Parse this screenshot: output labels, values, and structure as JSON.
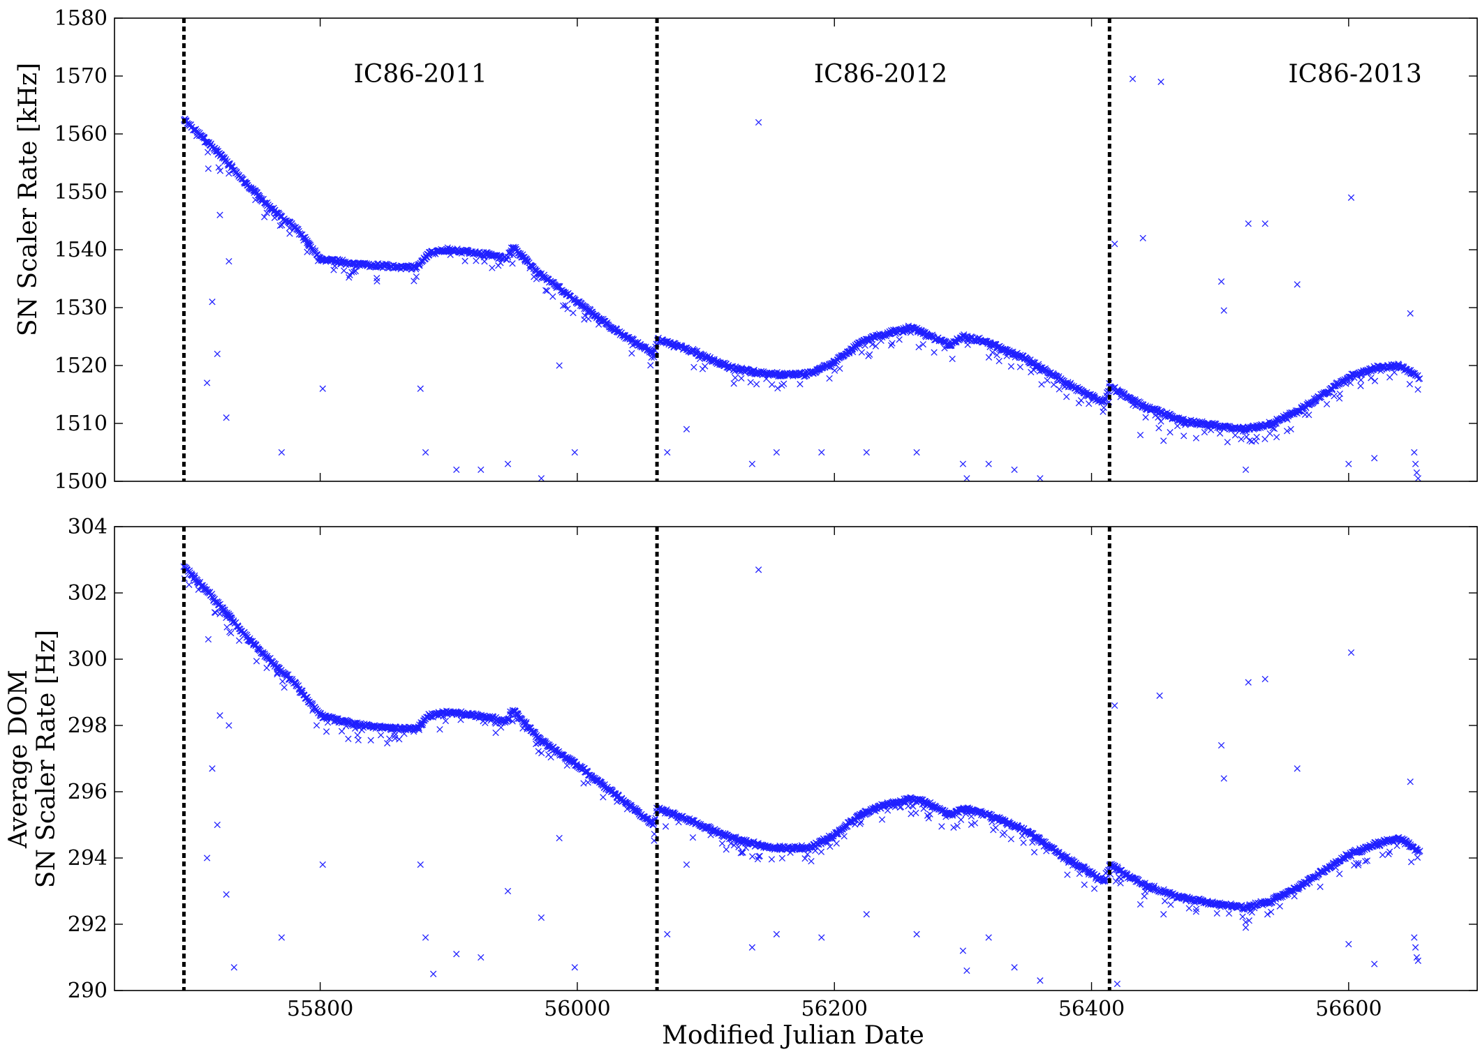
{
  "chart_data": {
    "type": "scatter",
    "marker": "x",
    "marker_color": "#2020ff",
    "shared_x": true,
    "xlabel": "Modified Julian Date",
    "xlim": [
      55640,
      56700
    ],
    "xticks": [
      55800,
      56000,
      56200,
      56400,
      56600
    ],
    "season_boundaries": [
      55694,
      56062,
      56414
    ],
    "season_labels": [
      {
        "label": "IC86-2011",
        "x": 55878
      },
      {
        "label": "IC86-2012",
        "x": 56236
      },
      {
        "label": "IC86-2013",
        "x": 56605
      }
    ],
    "grid": false,
    "panels": [
      {
        "id": "total",
        "ylabel": [
          "SN Scaler Rate [kHz]"
        ],
        "ylim": [
          1500,
          1580
        ],
        "yticks": [
          1500,
          1510,
          1520,
          1530,
          1540,
          1550,
          1560,
          1570,
          1580
        ],
        "trend": [
          {
            "x": 55694,
            "y": 1562.5
          },
          {
            "x": 55720,
            "y": 1557
          },
          {
            "x": 55740,
            "y": 1552
          },
          {
            "x": 55760,
            "y": 1547.5
          },
          {
            "x": 55780,
            "y": 1544
          },
          {
            "x": 55800,
            "y": 1538.5
          },
          {
            "x": 55830,
            "y": 1537.5
          },
          {
            "x": 55860,
            "y": 1537
          },
          {
            "x": 55875,
            "y": 1537
          },
          {
            "x": 55885,
            "y": 1539.5
          },
          {
            "x": 55900,
            "y": 1540
          },
          {
            "x": 55920,
            "y": 1539.5
          },
          {
            "x": 55935,
            "y": 1539
          },
          {
            "x": 55945,
            "y": 1538.5
          },
          {
            "x": 55950,
            "y": 1540.5
          },
          {
            "x": 55970,
            "y": 1536
          },
          {
            "x": 56000,
            "y": 1531
          },
          {
            "x": 56030,
            "y": 1526
          },
          {
            "x": 56060,
            "y": 1522
          },
          {
            "x": 56062,
            "y": 1524.5
          },
          {
            "x": 56090,
            "y": 1522.5
          },
          {
            "x": 56120,
            "y": 1519.5
          },
          {
            "x": 56150,
            "y": 1518.5
          },
          {
            "x": 56180,
            "y": 1518.5
          },
          {
            "x": 56200,
            "y": 1520.5
          },
          {
            "x": 56220,
            "y": 1524
          },
          {
            "x": 56240,
            "y": 1525.5
          },
          {
            "x": 56260,
            "y": 1526.5
          },
          {
            "x": 56275,
            "y": 1525
          },
          {
            "x": 56290,
            "y": 1523.5
          },
          {
            "x": 56300,
            "y": 1525
          },
          {
            "x": 56320,
            "y": 1524
          },
          {
            "x": 56350,
            "y": 1521
          },
          {
            "x": 56380,
            "y": 1517
          },
          {
            "x": 56410,
            "y": 1513.5
          },
          {
            "x": 56414,
            "y": 1516.5
          },
          {
            "x": 56440,
            "y": 1513
          },
          {
            "x": 56470,
            "y": 1510.5
          },
          {
            "x": 56500,
            "y": 1509.5
          },
          {
            "x": 56520,
            "y": 1509
          },
          {
            "x": 56540,
            "y": 1510
          },
          {
            "x": 56560,
            "y": 1512
          },
          {
            "x": 56580,
            "y": 1515
          },
          {
            "x": 56600,
            "y": 1518
          },
          {
            "x": 56620,
            "y": 1519.5
          },
          {
            "x": 56640,
            "y": 1520
          },
          {
            "x": 56655,
            "y": 1518
          }
        ],
        "outliers": [
          {
            "x": 56141,
            "y": 1562
          },
          {
            "x": 56432,
            "y": 1569.5
          },
          {
            "x": 56454,
            "y": 1569
          },
          {
            "x": 56440,
            "y": 1542
          },
          {
            "x": 56522,
            "y": 1544.5
          },
          {
            "x": 56535,
            "y": 1544.5
          },
          {
            "x": 56602,
            "y": 1549
          },
          {
            "x": 56560,
            "y": 1534
          },
          {
            "x": 56501,
            "y": 1534.5
          },
          {
            "x": 56503,
            "y": 1529.5
          },
          {
            "x": 56648,
            "y": 1529
          },
          {
            "x": 56418,
            "y": 1541
          },
          {
            "x": 55713,
            "y": 1554
          },
          {
            "x": 55722,
            "y": 1546
          },
          {
            "x": 55729,
            "y": 1538
          },
          {
            "x": 55716,
            "y": 1531
          },
          {
            "x": 55712,
            "y": 1517
          },
          {
            "x": 55720,
            "y": 1522
          },
          {
            "x": 55727,
            "y": 1511
          },
          {
            "x": 55770,
            "y": 1505
          },
          {
            "x": 55802,
            "y": 1516
          },
          {
            "x": 55878,
            "y": 1516
          },
          {
            "x": 55882,
            "y": 1505
          },
          {
            "x": 55906,
            "y": 1502
          },
          {
            "x": 55925,
            "y": 1502
          },
          {
            "x": 55946,
            "y": 1503
          },
          {
            "x": 55972,
            "y": 1500.5
          },
          {
            "x": 55986,
            "y": 1520
          },
          {
            "x": 55998,
            "y": 1505
          },
          {
            "x": 56070,
            "y": 1505
          },
          {
            "x": 56085,
            "y": 1509
          },
          {
            "x": 56136,
            "y": 1503
          },
          {
            "x": 56155,
            "y": 1505
          },
          {
            "x": 56190,
            "y": 1505
          },
          {
            "x": 56225,
            "y": 1505
          },
          {
            "x": 56264,
            "y": 1505
          },
          {
            "x": 56300,
            "y": 1503
          },
          {
            "x": 56303,
            "y": 1500.5
          },
          {
            "x": 56320,
            "y": 1503
          },
          {
            "x": 56340,
            "y": 1502
          },
          {
            "x": 56360,
            "y": 1500.5
          },
          {
            "x": 56438,
            "y": 1508
          },
          {
            "x": 56456,
            "y": 1507
          },
          {
            "x": 56520,
            "y": 1502
          },
          {
            "x": 56600,
            "y": 1503
          },
          {
            "x": 56620,
            "y": 1504
          },
          {
            "x": 56651,
            "y": 1505
          },
          {
            "x": 56652,
            "y": 1503
          },
          {
            "x": 56653,
            "y": 1501.5
          },
          {
            "x": 56654,
            "y": 1500.5
          }
        ]
      },
      {
        "id": "average",
        "ylabel": [
          "Average DOM",
          "SN Scaler Rate [Hz]"
        ],
        "ylim": [
          290,
          304
        ],
        "yticks": [
          290,
          292,
          294,
          296,
          298,
          300,
          302,
          304
        ],
        "trend": [
          {
            "x": 55694,
            "y": 302.8
          },
          {
            "x": 55720,
            "y": 301.7
          },
          {
            "x": 55740,
            "y": 300.8
          },
          {
            "x": 55760,
            "y": 300
          },
          {
            "x": 55780,
            "y": 299.3
          },
          {
            "x": 55800,
            "y": 298.3
          },
          {
            "x": 55830,
            "y": 298
          },
          {
            "x": 55860,
            "y": 297.9
          },
          {
            "x": 55875,
            "y": 297.9
          },
          {
            "x": 55885,
            "y": 298.3
          },
          {
            "x": 55900,
            "y": 298.4
          },
          {
            "x": 55920,
            "y": 298.3
          },
          {
            "x": 55935,
            "y": 298.2
          },
          {
            "x": 55945,
            "y": 298.1
          },
          {
            "x": 55950,
            "y": 298.5
          },
          {
            "x": 55970,
            "y": 297.6
          },
          {
            "x": 56000,
            "y": 296.8
          },
          {
            "x": 56030,
            "y": 295.9
          },
          {
            "x": 56060,
            "y": 295
          },
          {
            "x": 56062,
            "y": 295.5
          },
          {
            "x": 56090,
            "y": 295.1
          },
          {
            "x": 56120,
            "y": 294.6
          },
          {
            "x": 56150,
            "y": 294.3
          },
          {
            "x": 56180,
            "y": 294.3
          },
          {
            "x": 56200,
            "y": 294.7
          },
          {
            "x": 56220,
            "y": 295.3
          },
          {
            "x": 56240,
            "y": 295.6
          },
          {
            "x": 56260,
            "y": 295.8
          },
          {
            "x": 56275,
            "y": 295.6
          },
          {
            "x": 56290,
            "y": 295.3
          },
          {
            "x": 56300,
            "y": 295.5
          },
          {
            "x": 56320,
            "y": 295.3
          },
          {
            "x": 56350,
            "y": 294.8
          },
          {
            "x": 56380,
            "y": 294
          },
          {
            "x": 56410,
            "y": 293.3
          },
          {
            "x": 56414,
            "y": 293.8
          },
          {
            "x": 56440,
            "y": 293.2
          },
          {
            "x": 56470,
            "y": 292.8
          },
          {
            "x": 56500,
            "y": 292.6
          },
          {
            "x": 56520,
            "y": 292.5
          },
          {
            "x": 56540,
            "y": 292.7
          },
          {
            "x": 56560,
            "y": 293.1
          },
          {
            "x": 56580,
            "y": 293.6
          },
          {
            "x": 56600,
            "y": 294.1
          },
          {
            "x": 56620,
            "y": 294.4
          },
          {
            "x": 56640,
            "y": 294.6
          },
          {
            "x": 56655,
            "y": 294.2
          }
        ],
        "outliers": [
          {
            "x": 56141,
            "y": 302.7
          },
          {
            "x": 56453,
            "y": 298.9
          },
          {
            "x": 56522,
            "y": 299.3
          },
          {
            "x": 56535,
            "y": 299.4
          },
          {
            "x": 56602,
            "y": 300.2
          },
          {
            "x": 56560,
            "y": 296.7
          },
          {
            "x": 56501,
            "y": 297.4
          },
          {
            "x": 56503,
            "y": 296.4
          },
          {
            "x": 56648,
            "y": 296.3
          },
          {
            "x": 56418,
            "y": 298.6
          },
          {
            "x": 55713,
            "y": 300.6
          },
          {
            "x": 55722,
            "y": 298.3
          },
          {
            "x": 55729,
            "y": 298
          },
          {
            "x": 55716,
            "y": 296.7
          },
          {
            "x": 55712,
            "y": 294
          },
          {
            "x": 55720,
            "y": 295
          },
          {
            "x": 55727,
            "y": 292.9
          },
          {
            "x": 55733,
            "y": 290.7
          },
          {
            "x": 55770,
            "y": 291.6
          },
          {
            "x": 55802,
            "y": 293.8
          },
          {
            "x": 55878,
            "y": 293.8
          },
          {
            "x": 55882,
            "y": 291.6
          },
          {
            "x": 55888,
            "y": 290.5
          },
          {
            "x": 55906,
            "y": 291.1
          },
          {
            "x": 55925,
            "y": 291
          },
          {
            "x": 55946,
            "y": 293
          },
          {
            "x": 55972,
            "y": 292.2
          },
          {
            "x": 55986,
            "y": 294.6
          },
          {
            "x": 55998,
            "y": 290.7
          },
          {
            "x": 56070,
            "y": 291.7
          },
          {
            "x": 56085,
            "y": 293.8
          },
          {
            "x": 56136,
            "y": 291.3
          },
          {
            "x": 56155,
            "y": 291.7
          },
          {
            "x": 56190,
            "y": 291.6
          },
          {
            "x": 56225,
            "y": 292.3
          },
          {
            "x": 56264,
            "y": 291.7
          },
          {
            "x": 56300,
            "y": 291.2
          },
          {
            "x": 56303,
            "y": 290.6
          },
          {
            "x": 56320,
            "y": 291.6
          },
          {
            "x": 56340,
            "y": 290.7
          },
          {
            "x": 56360,
            "y": 290.3
          },
          {
            "x": 56420,
            "y": 290.2
          },
          {
            "x": 56438,
            "y": 292.6
          },
          {
            "x": 56456,
            "y": 292.3
          },
          {
            "x": 56520,
            "y": 291.9
          },
          {
            "x": 56600,
            "y": 291.4
          },
          {
            "x": 56620,
            "y": 290.8
          },
          {
            "x": 56651,
            "y": 291.6
          },
          {
            "x": 56652,
            "y": 291.3
          },
          {
            "x": 56653,
            "y": 291
          },
          {
            "x": 56654,
            "y": 290.9
          }
        ]
      }
    ]
  }
}
